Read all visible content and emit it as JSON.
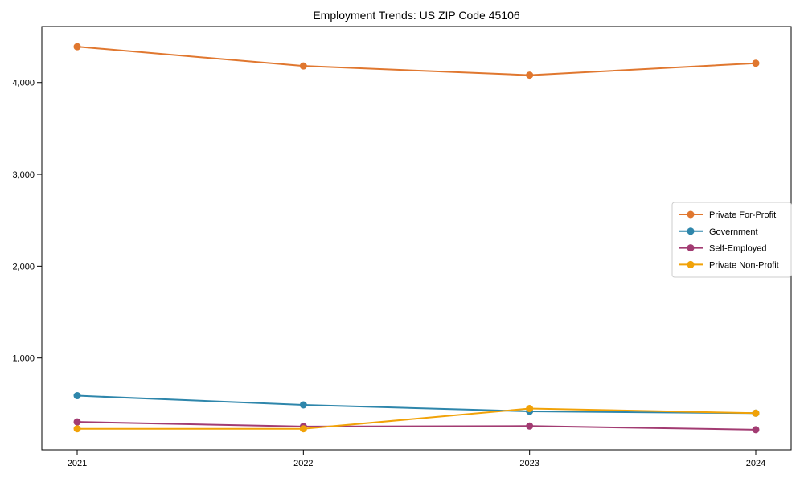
{
  "page": {
    "title": "Employment Trends: US ZIP Code 45106"
  },
  "chart_data": {
    "type": "line",
    "title": "Employment Trends: US ZIP Code 45106",
    "x": [
      2021,
      2022,
      2023,
      2024
    ],
    "xtick_labels": [
      "2021",
      "2022",
      "2023",
      "2024"
    ],
    "series": [
      {
        "name": "Private For-Profit",
        "color": "#E0772F",
        "values": [
          4390,
          4180,
          4080,
          4210
        ]
      },
      {
        "name": "Government",
        "color": "#2E86AB",
        "values": [
          590,
          490,
          420,
          400
        ]
      },
      {
        "name": "Self-Employed",
        "color": "#A23B72",
        "values": [
          305,
          255,
          260,
          220
        ]
      },
      {
        "name": "Private Non-Profit",
        "color": "#F1A208",
        "values": [
          230,
          230,
          450,
          400
        ]
      }
    ],
    "xlabel": "",
    "ylabel": "",
    "ylim": [
      0,
      4610
    ],
    "yticks": [
      1000,
      2000,
      3000,
      4000
    ],
    "ytick_labels": [
      "1,000",
      "2,000",
      "3,000",
      "4,000"
    ],
    "grid": false,
    "legend_position": "center-right",
    "axis_color": "#000000",
    "legend_border_color": "#cccccc",
    "background_color": "#ffffff"
  }
}
